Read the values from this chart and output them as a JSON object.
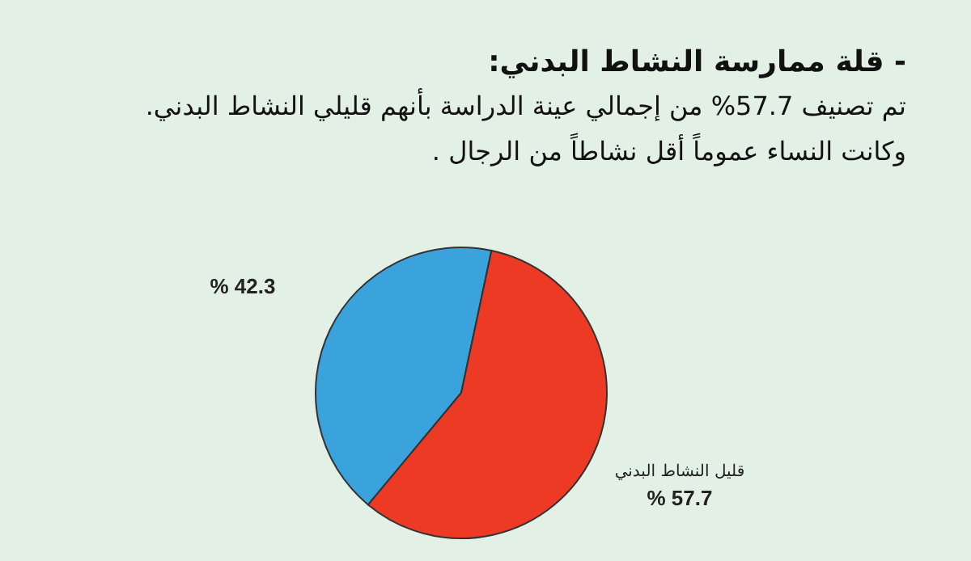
{
  "chart_data": {
    "type": "pie",
    "title": "- قلة ممارسة النشاط البدني:",
    "subtitle": "تم تصنيف 57.7% من إجمالي عينة الدراسة بأنهم قليلي النشاط البدني.",
    "annotations": [
      "وكانت النساء عموماً أقل نشاطاً من الرجال ."
    ],
    "categories": [
      null,
      "قليل النشاط البدني"
    ],
    "values": [
      42.3,
      57.7
    ],
    "colors": [
      "#3aa3dc",
      "#ec3a24"
    ],
    "value_labels": [
      "% 42.3",
      "% 57.7"
    ]
  }
}
